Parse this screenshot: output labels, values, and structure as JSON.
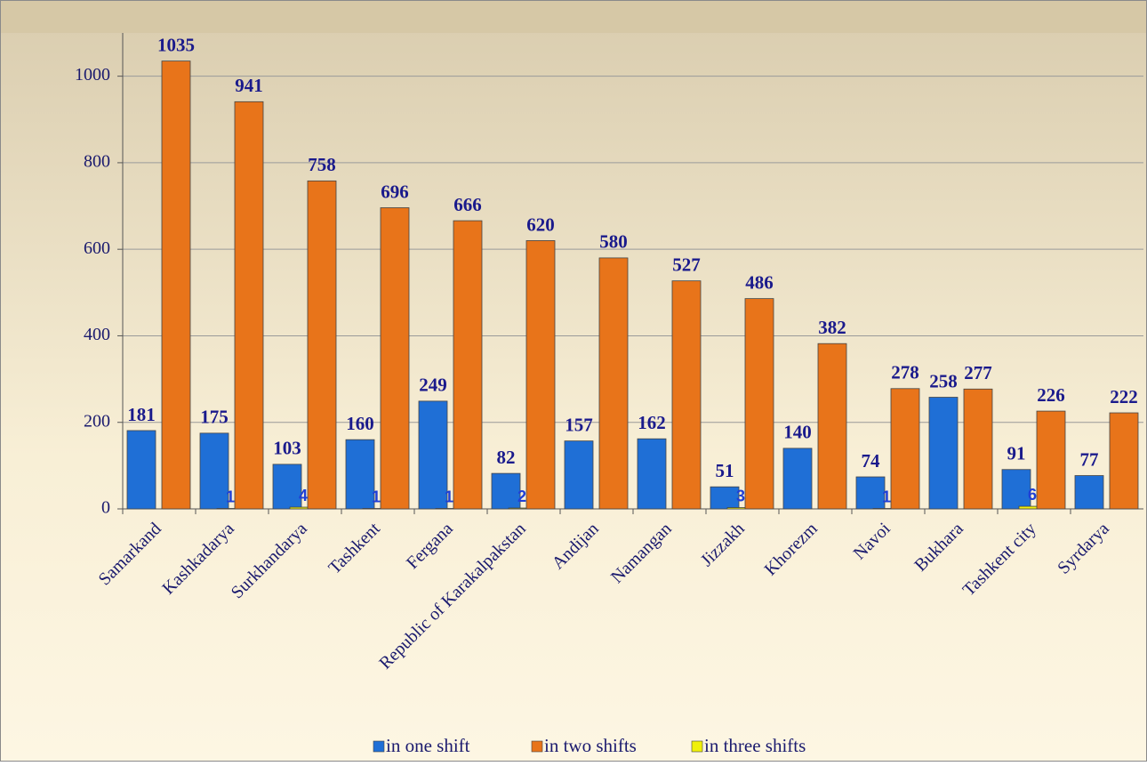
{
  "chart_data": {
    "type": "bar",
    "categories": [
      "Samarkand",
      "Kashkadarya",
      "Surkhandarya",
      "Tashkent",
      "Fergana",
      "Republic of Karakalpakstan",
      "Andijan",
      "Namangan",
      "Jizzakh",
      "Khorezm",
      "Navoi",
      "Bukhara",
      "Tashkent city",
      "Syrdarya"
    ],
    "series": [
      {
        "name": "in one shift",
        "color": "#1f6fd6",
        "values": [
          181,
          175,
          103,
          160,
          249,
          82,
          157,
          162,
          51,
          140,
          74,
          258,
          91,
          77
        ]
      },
      {
        "name": "in two shifts",
        "color": "#e8741a",
        "values": [
          1035,
          941,
          758,
          696,
          666,
          620,
          580,
          527,
          486,
          382,
          278,
          277,
          226,
          222
        ]
      },
      {
        "name": "in three shifts",
        "color": "#f0f00a",
        "values": [
          null,
          1,
          4,
          1,
          1,
          2,
          null,
          null,
          3,
          null,
          1,
          null,
          6,
          null
        ]
      }
    ],
    "ylim": [
      0,
      1100
    ],
    "yticks": [
      0,
      200,
      400,
      600,
      800,
      1000
    ],
    "grid": true,
    "legend": "bottom"
  }
}
